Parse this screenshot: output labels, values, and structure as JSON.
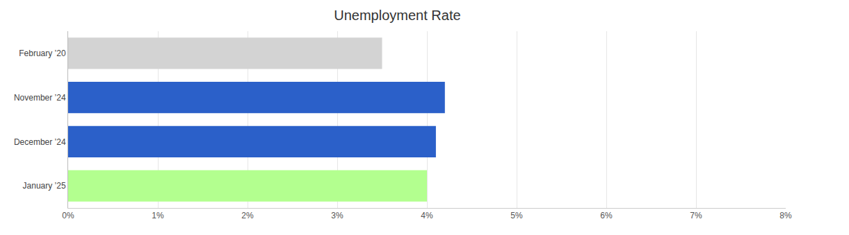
{
  "chart_data": {
    "type": "bar",
    "title": "Unemployment Rate",
    "orientation": "horizontal",
    "categories": [
      "February ’20",
      "November ’24",
      "December ’24",
      "January ’25"
    ],
    "values": [
      3.5,
      4.2,
      4.1,
      4.0
    ],
    "colors": [
      "#d3d3d3",
      "#2b60c9",
      "#2b60c9",
      "#b3ff8f"
    ],
    "xlim": [
      0,
      8
    ],
    "xticks": [
      {
        "value": 0,
        "label": "0%"
      },
      {
        "value": 1,
        "label": "1%"
      },
      {
        "value": 2,
        "label": "2%"
      },
      {
        "value": 3,
        "label": "3%"
      },
      {
        "value": 4,
        "label": "4%"
      },
      {
        "value": 5,
        "label": "5%"
      },
      {
        "value": 6,
        "label": "6%"
      },
      {
        "value": 7,
        "label": "7%"
      },
      {
        "value": 8,
        "label": "8%"
      }
    ],
    "grid": true
  }
}
